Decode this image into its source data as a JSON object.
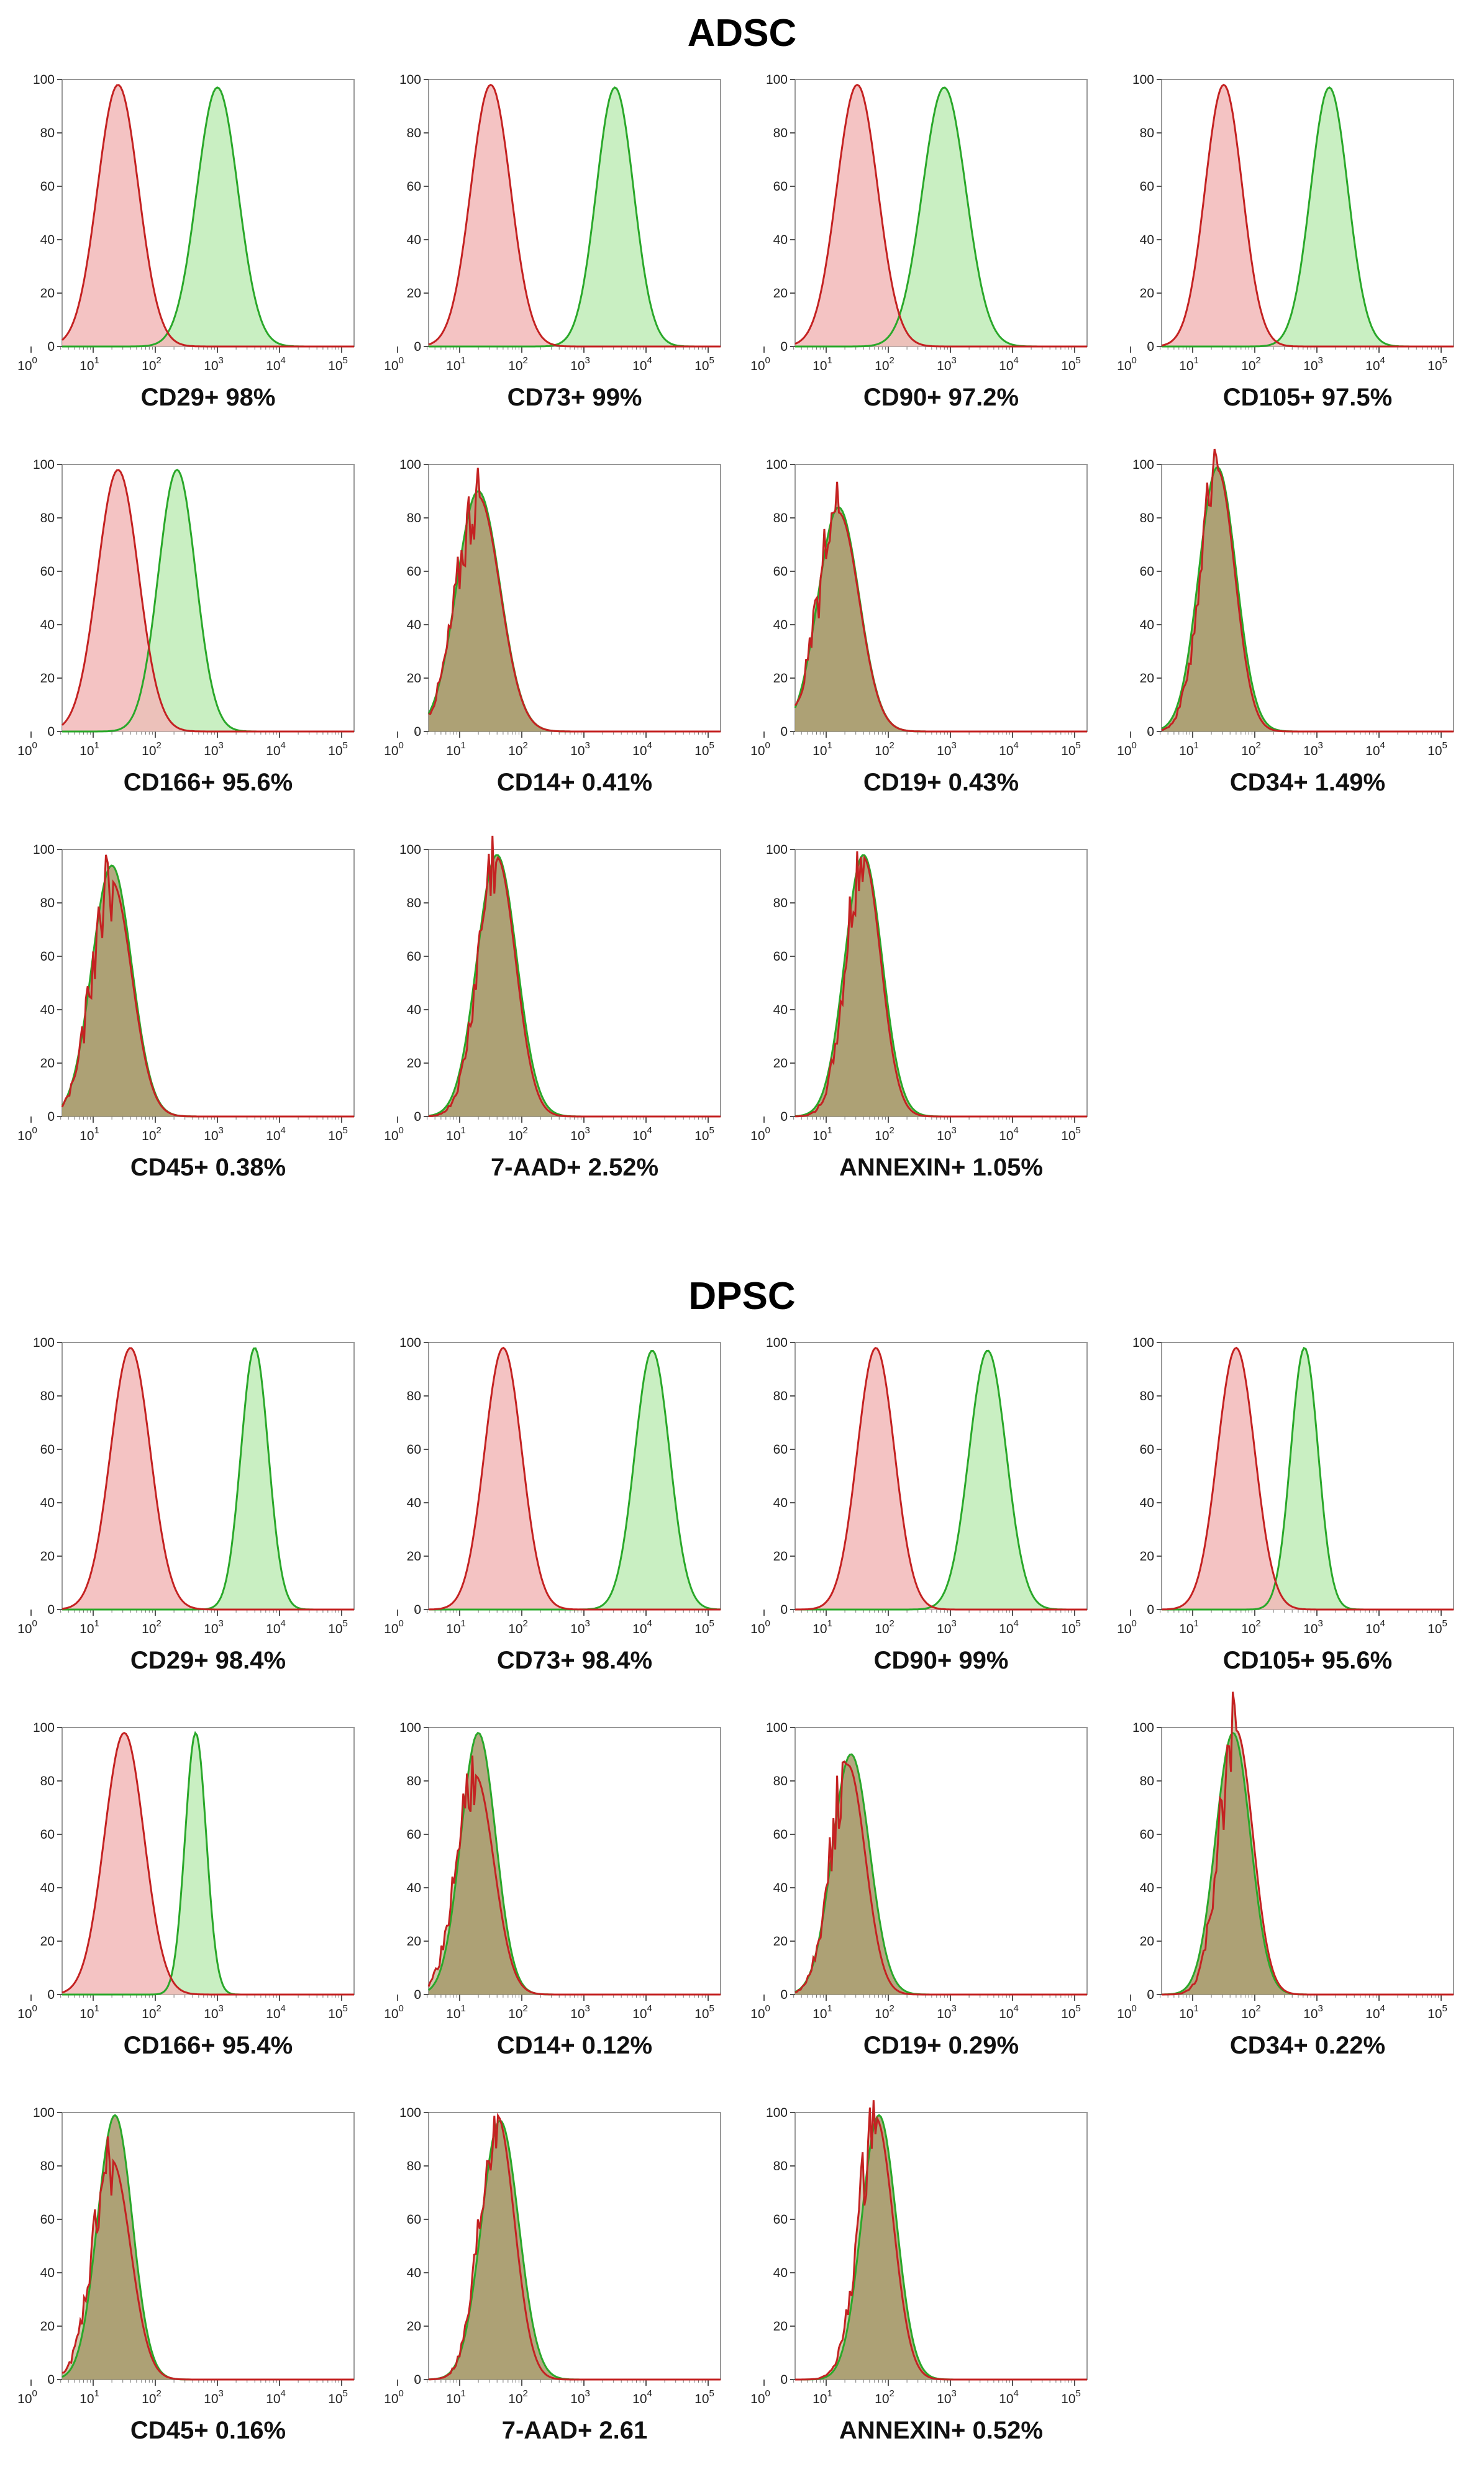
{
  "sections": [
    {
      "title": "ADSC"
    },
    {
      "title": "DPSC"
    }
  ],
  "colors": {
    "isotype_line": "#c42222",
    "isotype_fill": "#f2b9b9",
    "marker_line": "#2aa82a",
    "marker_fill": "#c9efc2",
    "overlap_fill": "#a79a6b",
    "frame": "#9a9a9a"
  },
  "axis": {
    "y_ticks": [
      "0",
      "20",
      "40",
      "60",
      "80",
      "100"
    ],
    "x_ticks": [
      "0",
      "1",
      "2",
      "3",
      "4",
      "5"
    ],
    "x_base": "10"
  },
  "chart_data": [
    {
      "type": "area",
      "section": 0,
      "label": "CD29+ 98%",
      "ylim": [
        0,
        100
      ],
      "xscale": "log",
      "xlim": [
        0.5,
        5.2
      ],
      "series": [
        {
          "kind": "isotype",
          "peak_x": 1.4,
          "sd": 0.33,
          "height": 98
        },
        {
          "kind": "marker",
          "peak_x": 3.0,
          "sd": 0.33,
          "height": 97
        }
      ]
    },
    {
      "type": "area",
      "section": 0,
      "label": "CD73+ 99%",
      "ylim": [
        0,
        100
      ],
      "xscale": "log",
      "xlim": [
        0.5,
        5.2
      ],
      "series": [
        {
          "kind": "isotype",
          "peak_x": 1.5,
          "sd": 0.32,
          "height": 98
        },
        {
          "kind": "marker",
          "peak_x": 3.5,
          "sd": 0.3,
          "height": 97
        }
      ]
    },
    {
      "type": "area",
      "section": 0,
      "label": "CD90+ 97.2%",
      "ylim": [
        0,
        100
      ],
      "xscale": "log",
      "xlim": [
        0.5,
        5.2
      ],
      "series": [
        {
          "kind": "isotype",
          "peak_x": 1.5,
          "sd": 0.33,
          "height": 98
        },
        {
          "kind": "marker",
          "peak_x": 2.9,
          "sd": 0.35,
          "height": 97
        }
      ]
    },
    {
      "type": "area",
      "section": 0,
      "label": "CD105+ 97.5%",
      "ylim": [
        0,
        100
      ],
      "xscale": "log",
      "xlim": [
        0.5,
        5.2
      ],
      "series": [
        {
          "kind": "isotype",
          "peak_x": 1.5,
          "sd": 0.3,
          "height": 98
        },
        {
          "kind": "marker",
          "peak_x": 3.2,
          "sd": 0.3,
          "height": 97
        }
      ]
    },
    {
      "type": "area",
      "section": 0,
      "label": "CD166+ 95.6%",
      "ylim": [
        0,
        100
      ],
      "xscale": "log",
      "xlim": [
        0.5,
        5.2
      ],
      "series": [
        {
          "kind": "isotype",
          "peak_x": 1.4,
          "sd": 0.33,
          "height": 98
        },
        {
          "kind": "marker",
          "peak_x": 2.35,
          "sd": 0.3,
          "height": 98
        }
      ]
    },
    {
      "type": "area",
      "section": 0,
      "label": "CD14+ 0.41%",
      "ylim": [
        0,
        100
      ],
      "xscale": "log",
      "xlim": [
        0.5,
        5.2
      ],
      "series": [
        {
          "kind": "isotype",
          "peak_x": 1.3,
          "sd": 0.35,
          "height": 88
        },
        {
          "kind": "marker",
          "peak_x": 1.3,
          "sd": 0.35,
          "height": 90
        }
      ]
    },
    {
      "type": "area",
      "section": 0,
      "label": "CD19+ 0.43%",
      "ylim": [
        0,
        100
      ],
      "xscale": "log",
      "xlim": [
        0.5,
        5.2
      ],
      "series": [
        {
          "kind": "isotype",
          "peak_x": 1.2,
          "sd": 0.33,
          "height": 82
        },
        {
          "kind": "marker",
          "peak_x": 1.2,
          "sd": 0.33,
          "height": 84
        }
      ]
    },
    {
      "type": "area",
      "section": 0,
      "label": "CD34+ 1.49%",
      "ylim": [
        0,
        100
      ],
      "xscale": "log",
      "xlim": [
        0.5,
        5.2
      ],
      "series": [
        {
          "kind": "isotype",
          "peak_x": 1.4,
          "sd": 0.28,
          "height": 98
        },
        {
          "kind": "marker",
          "peak_x": 1.4,
          "sd": 0.3,
          "height": 99
        }
      ]
    },
    {
      "type": "area",
      "section": 0,
      "label": "CD45+ 0.38%",
      "ylim": [
        0,
        100
      ],
      "xscale": "log",
      "xlim": [
        0.5,
        5.2
      ],
      "series": [
        {
          "kind": "isotype",
          "peak_x": 1.3,
          "sd": 0.32,
          "height": 88
        },
        {
          "kind": "marker",
          "peak_x": 1.3,
          "sd": 0.32,
          "height": 94
        }
      ]
    },
    {
      "type": "area",
      "section": 0,
      "label": "7-AAD+ 2.52%",
      "ylim": [
        0,
        100
      ],
      "xscale": "log",
      "xlim": [
        0.5,
        5.2
      ],
      "series": [
        {
          "kind": "isotype",
          "peak_x": 1.6,
          "sd": 0.3,
          "height": 97
        },
        {
          "kind": "marker",
          "peak_x": 1.6,
          "sd": 0.32,
          "height": 98
        }
      ]
    },
    {
      "type": "area",
      "section": 0,
      "label": "ANNEXIN+ 1.05%",
      "ylim": [
        0,
        100
      ],
      "xscale": "log",
      "xlim": [
        0.5,
        5.2
      ],
      "series": [
        {
          "kind": "isotype",
          "peak_x": 1.6,
          "sd": 0.28,
          "height": 97
        },
        {
          "kind": "marker",
          "peak_x": 1.6,
          "sd": 0.3,
          "height": 98
        }
      ]
    },
    {
      "type": "area",
      "section": 1,
      "label": "CD29+ 98.4%",
      "ylim": [
        0,
        100
      ],
      "xscale": "log",
      "xlim": [
        0.5,
        5.2
      ],
      "series": [
        {
          "kind": "isotype",
          "peak_x": 1.6,
          "sd": 0.32,
          "height": 98
        },
        {
          "kind": "marker",
          "peak_x": 3.6,
          "sd": 0.22,
          "height": 98
        }
      ]
    },
    {
      "type": "area",
      "section": 1,
      "label": "CD73+ 98.4%",
      "ylim": [
        0,
        100
      ],
      "xscale": "log",
      "xlim": [
        0.5,
        5.2
      ],
      "series": [
        {
          "kind": "isotype",
          "peak_x": 1.7,
          "sd": 0.3,
          "height": 98
        },
        {
          "kind": "marker",
          "peak_x": 4.1,
          "sd": 0.28,
          "height": 97
        }
      ]
    },
    {
      "type": "area",
      "section": 1,
      "label": "CD90+ 99%",
      "ylim": [
        0,
        100
      ],
      "xscale": "log",
      "xlim": [
        0.5,
        5.2
      ],
      "series": [
        {
          "kind": "isotype",
          "peak_x": 1.8,
          "sd": 0.3,
          "height": 98
        },
        {
          "kind": "marker",
          "peak_x": 3.6,
          "sd": 0.3,
          "height": 97
        }
      ]
    },
    {
      "type": "area",
      "section": 1,
      "label": "CD105+ 95.6%",
      "ylim": [
        0,
        100
      ],
      "xscale": "log",
      "xlim": [
        0.5,
        5.2
      ],
      "series": [
        {
          "kind": "isotype",
          "peak_x": 1.7,
          "sd": 0.3,
          "height": 98
        },
        {
          "kind": "marker",
          "peak_x": 2.8,
          "sd": 0.22,
          "height": 98
        }
      ]
    },
    {
      "type": "area",
      "section": 1,
      "label": "CD166+ 95.4%",
      "ylim": [
        0,
        100
      ],
      "xscale": "log",
      "xlim": [
        0.5,
        5.2
      ],
      "series": [
        {
          "kind": "isotype",
          "peak_x": 1.5,
          "sd": 0.32,
          "height": 98
        },
        {
          "kind": "marker",
          "peak_x": 2.65,
          "sd": 0.17,
          "height": 98
        }
      ]
    },
    {
      "type": "area",
      "section": 1,
      "label": "CD14+ 0.12%",
      "ylim": [
        0,
        100
      ],
      "xscale": "log",
      "xlim": [
        0.5,
        5.2
      ],
      "series": [
        {
          "kind": "isotype",
          "peak_x": 1.25,
          "sd": 0.3,
          "height": 82
        },
        {
          "kind": "marker",
          "peak_x": 1.3,
          "sd": 0.28,
          "height": 98
        }
      ]
    },
    {
      "type": "area",
      "section": 1,
      "label": "CD19+ 0.29%",
      "ylim": [
        0,
        100
      ],
      "xscale": "log",
      "xlim": [
        0.5,
        5.2
      ],
      "series": [
        {
          "kind": "isotype",
          "peak_x": 1.35,
          "sd": 0.28,
          "height": 86
        },
        {
          "kind": "marker",
          "peak_x": 1.4,
          "sd": 0.3,
          "height": 90
        }
      ]
    },
    {
      "type": "area",
      "section": 1,
      "label": "CD34+ 0.22%",
      "ylim": [
        0,
        100
      ],
      "xscale": "log",
      "xlim": [
        0.5,
        5.2
      ],
      "series": [
        {
          "kind": "isotype",
          "peak_x": 1.7,
          "sd": 0.27,
          "height": 99
        },
        {
          "kind": "marker",
          "peak_x": 1.65,
          "sd": 0.28,
          "height": 98
        }
      ]
    },
    {
      "type": "area",
      "section": 1,
      "label": "CD45+ 0.16%",
      "ylim": [
        0,
        100
      ],
      "xscale": "log",
      "xlim": [
        0.5,
        5.2
      ],
      "series": [
        {
          "kind": "isotype",
          "peak_x": 1.3,
          "sd": 0.3,
          "height": 82
        },
        {
          "kind": "marker",
          "peak_x": 1.35,
          "sd": 0.28,
          "height": 99
        }
      ]
    },
    {
      "type": "area",
      "section": 1,
      "label": "7-AAD+ 2.61",
      "ylim": [
        0,
        100
      ],
      "xscale": "log",
      "xlim": [
        0.5,
        5.2
      ],
      "series": [
        {
          "kind": "isotype",
          "peak_x": 1.6,
          "sd": 0.28,
          "height": 99
        },
        {
          "kind": "marker",
          "peak_x": 1.65,
          "sd": 0.3,
          "height": 97
        }
      ]
    },
    {
      "type": "area",
      "section": 1,
      "label": "ANNEXIN+ 0.52%",
      "ylim": [
        0,
        100
      ],
      "xscale": "log",
      "xlim": [
        0.5,
        5.2
      ],
      "series": [
        {
          "kind": "isotype",
          "peak_x": 1.8,
          "sd": 0.28,
          "height": 98
        },
        {
          "kind": "marker",
          "peak_x": 1.85,
          "sd": 0.28,
          "height": 99
        }
      ]
    }
  ]
}
